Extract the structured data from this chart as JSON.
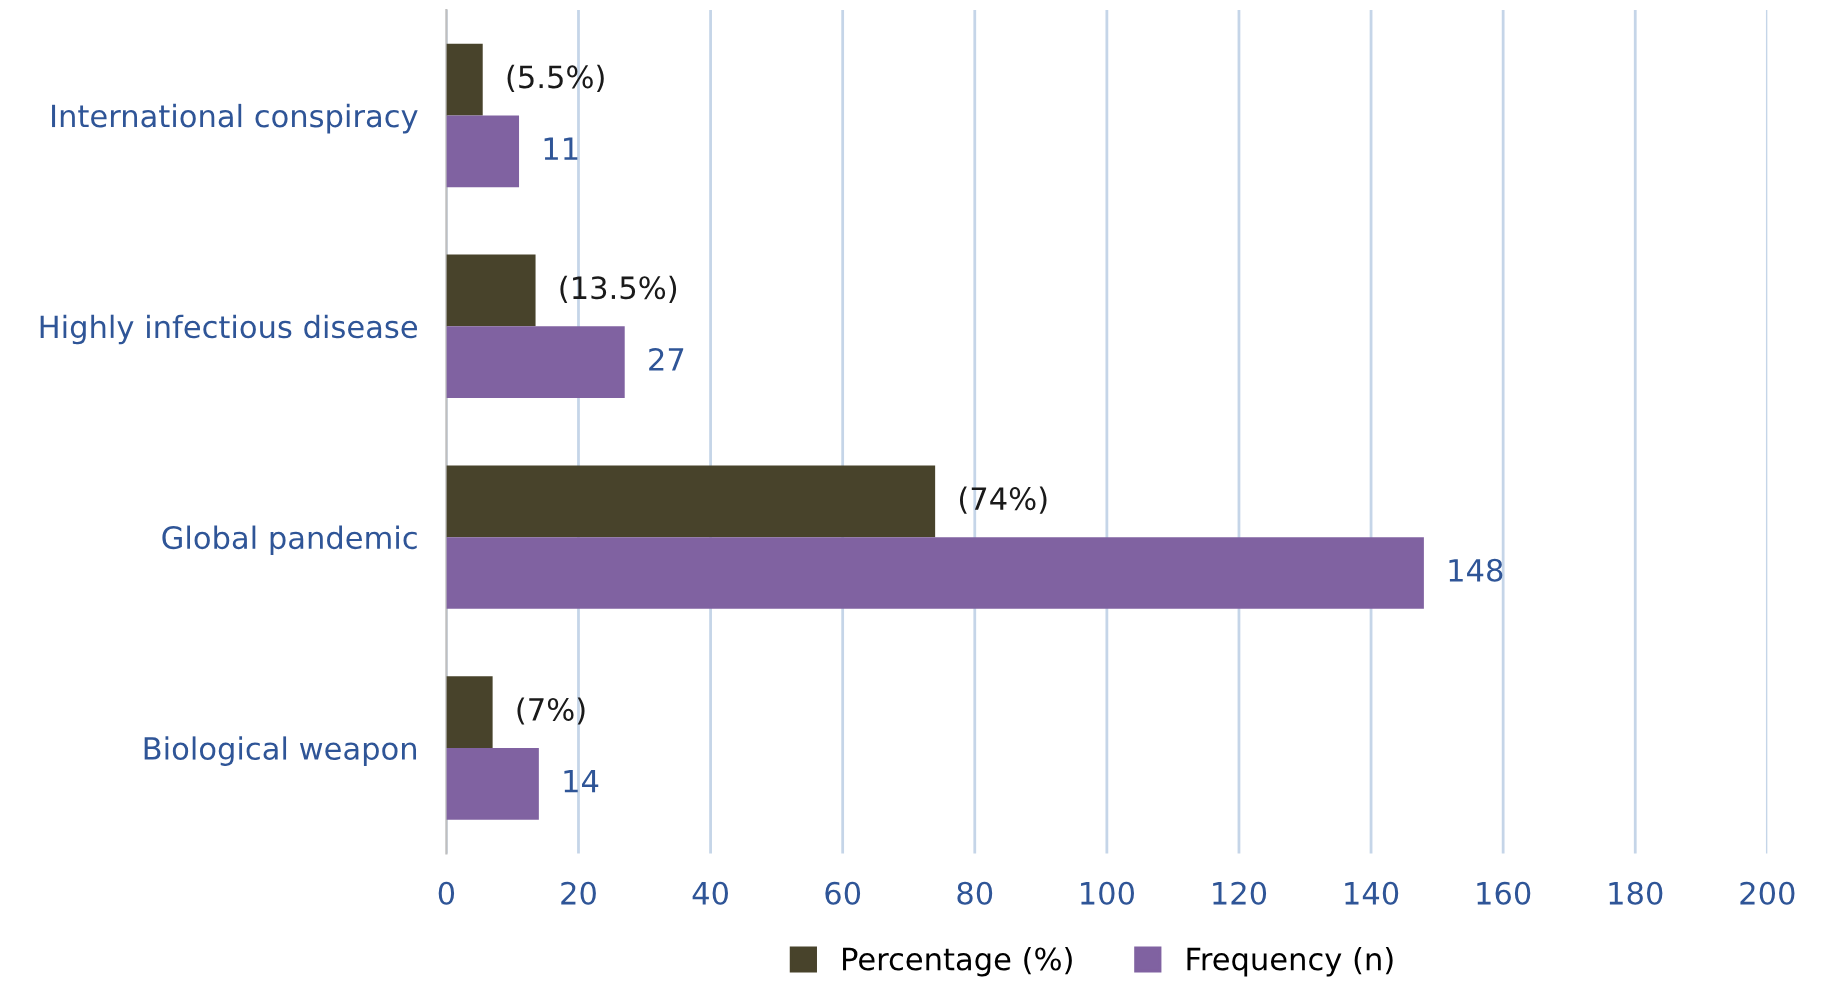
{
  "chart_data": {
    "type": "bar",
    "orientation": "horizontal",
    "categories": [
      "International conspiracy",
      "Highly infectious disease",
      "Global pandemic",
      "Biological weapon"
    ],
    "series": [
      {
        "name": "Percentage (%)",
        "color": "#48432b",
        "values": [
          5.5,
          13.5,
          74,
          7
        ],
        "value_labels": [
          "(5.5%)",
          "(13.5%)",
          "(74%)",
          "(7%)"
        ]
      },
      {
        "name": "Frequency (n)",
        "color": "#8062a1",
        "values": [
          11,
          27,
          148,
          14
        ],
        "value_labels": [
          "11",
          "27",
          "148",
          "14"
        ]
      }
    ],
    "xlim": [
      0,
      200
    ],
    "xticks": [
      0,
      20,
      40,
      60,
      80,
      100,
      120,
      140,
      160,
      180,
      200
    ],
    "grid": "x",
    "legend": "bottom"
  }
}
